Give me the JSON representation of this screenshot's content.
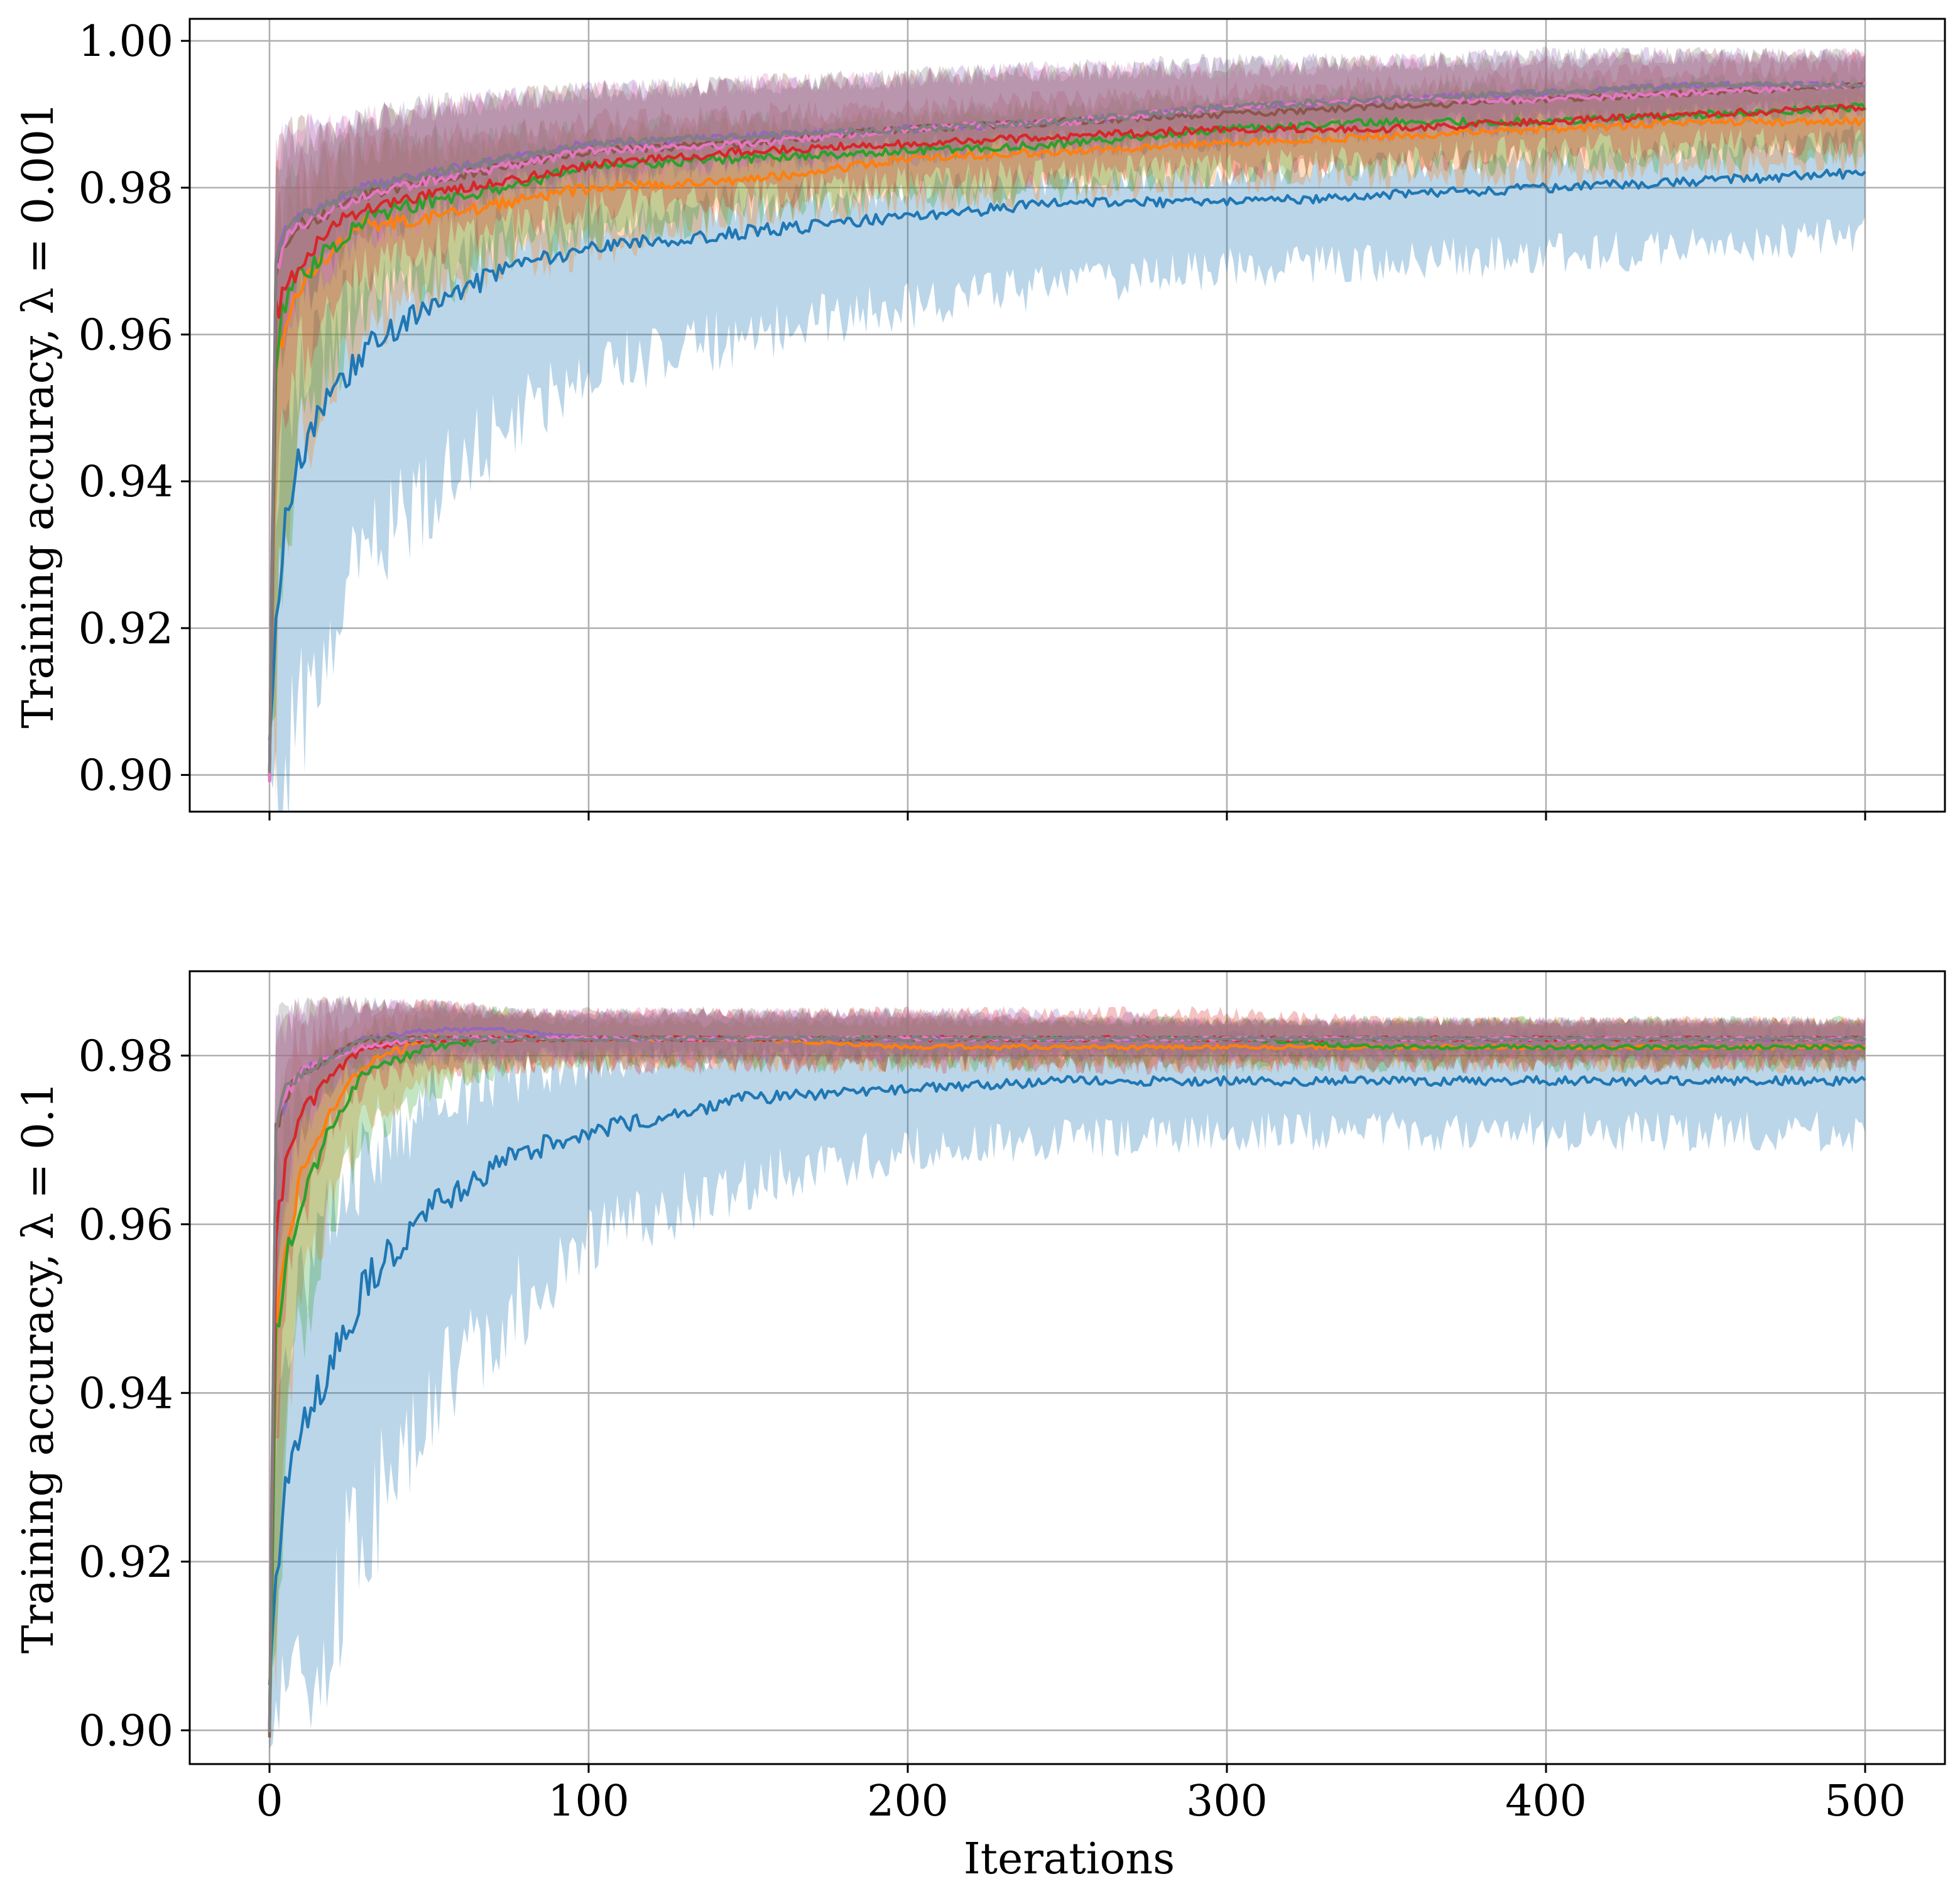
{
  "chart_data": [
    {
      "type": "line",
      "panel": "top",
      "ylabel": "Training accuracy, λ = 0.001",
      "xlabel": "",
      "xlim": [
        -25,
        525
      ],
      "ylim": [
        0.895,
        1.003
      ],
      "x_ticks": [
        0,
        100,
        200,
        300,
        400,
        500
      ],
      "x_tick_labels_shown": false,
      "y_ticks": [
        0.9,
        0.92,
        0.94,
        0.96,
        0.98,
        1.0
      ],
      "y_tick_labels": [
        "0.90",
        "0.92",
        "0.94",
        "0.96",
        "0.98",
        "1.00"
      ],
      "grid": true,
      "legend": "none",
      "x": [
        0,
        2,
        5,
        10,
        20,
        30,
        50,
        75,
        100,
        150,
        200,
        250,
        300,
        350,
        400,
        450,
        500
      ],
      "series": [
        {
          "color": "#1f77b4",
          "band_low": [
            0.9,
            0.9,
            0.902,
            0.908,
            0.92,
            0.93,
            0.938,
            0.948,
            0.955,
            0.96,
            0.964,
            0.967,
            0.969,
            0.97,
            0.971,
            0.972,
            0.974
          ],
          "values": [
            0.905,
            0.92,
            0.935,
            0.944,
            0.952,
            0.958,
            0.964,
            0.969,
            0.972,
            0.974,
            0.976,
            0.978,
            0.978,
            0.979,
            0.98,
            0.981,
            0.982
          ],
          "band_high": [
            0.91,
            0.935,
            0.95,
            0.956,
            0.962,
            0.966,
            0.97,
            0.974,
            0.976,
            0.978,
            0.98,
            0.981,
            0.982,
            0.983,
            0.984,
            0.985,
            0.987
          ]
        },
        {
          "color": "#ff7f0e",
          "band_low": [
            0.9,
            0.91,
            0.935,
            0.945,
            0.955,
            0.962,
            0.966,
            0.97,
            0.972,
            0.976,
            0.978,
            0.98,
            0.981,
            0.982,
            0.982,
            0.983,
            0.983
          ],
          "values": [
            0.9,
            0.955,
            0.963,
            0.966,
            0.971,
            0.975,
            0.976,
            0.978,
            0.98,
            0.981,
            0.984,
            0.985,
            0.986,
            0.987,
            0.988,
            0.989,
            0.989
          ],
          "band_high": [
            0.92,
            0.975,
            0.978,
            0.98,
            0.982,
            0.984,
            0.985,
            0.986,
            0.987,
            0.988,
            0.989,
            0.99,
            0.991,
            0.992,
            0.993,
            0.993,
            0.994
          ]
        },
        {
          "color": "#2ca02c",
          "band_low": [
            0.9,
            0.912,
            0.935,
            0.945,
            0.956,
            0.963,
            0.967,
            0.971,
            0.974,
            0.977,
            0.979,
            0.98,
            0.982,
            0.983,
            0.984,
            0.984,
            0.985
          ],
          "values": [
            0.9,
            0.957,
            0.964,
            0.968,
            0.972,
            0.976,
            0.978,
            0.98,
            0.983,
            0.984,
            0.985,
            0.986,
            0.988,
            0.989,
            0.989,
            0.99,
            0.991
          ],
          "band_high": [
            0.92,
            0.976,
            0.979,
            0.981,
            0.983,
            0.985,
            0.986,
            0.987,
            0.988,
            0.989,
            0.99,
            0.991,
            0.992,
            0.993,
            0.994,
            0.994,
            0.995
          ]
        },
        {
          "color": "#d62728",
          "band_low": [
            0.9,
            0.93,
            0.95,
            0.958,
            0.965,
            0.969,
            0.972,
            0.975,
            0.977,
            0.979,
            0.981,
            0.982,
            0.983,
            0.984,
            0.985,
            0.986,
            0.986
          ],
          "values": [
            0.9,
            0.963,
            0.966,
            0.97,
            0.975,
            0.977,
            0.979,
            0.981,
            0.983,
            0.985,
            0.986,
            0.987,
            0.988,
            0.988,
            0.989,
            0.99,
            0.991
          ],
          "band_high": [
            0.92,
            0.98,
            0.982,
            0.984,
            0.985,
            0.986,
            0.987,
            0.988,
            0.989,
            0.99,
            0.991,
            0.992,
            0.993,
            0.994,
            0.995,
            0.996,
            0.997
          ]
        },
        {
          "color": "#9467bd",
          "band_low": [
            0.9,
            0.955,
            0.962,
            0.966,
            0.971,
            0.974,
            0.977,
            0.98,
            0.982,
            0.984,
            0.985,
            0.986,
            0.987,
            0.988,
            0.989,
            0.99,
            0.991
          ],
          "values": [
            0.9,
            0.97,
            0.974,
            0.976,
            0.978,
            0.98,
            0.982,
            0.984,
            0.986,
            0.987,
            0.988,
            0.989,
            0.991,
            0.992,
            0.993,
            0.994,
            0.994
          ],
          "band_high": [
            0.92,
            0.984,
            0.986,
            0.987,
            0.988,
            0.989,
            0.991,
            0.992,
            0.993,
            0.994,
            0.995,
            0.996,
            0.997,
            0.997,
            0.998,
            0.998,
            0.998
          ]
        },
        {
          "color": "#8c564b",
          "band_low": [
            0.9,
            0.955,
            0.962,
            0.966,
            0.971,
            0.974,
            0.977,
            0.98,
            0.982,
            0.984,
            0.985,
            0.986,
            0.987,
            0.988,
            0.989,
            0.99,
            0.991
          ],
          "values": [
            0.9,
            0.969,
            0.973,
            0.975,
            0.977,
            0.979,
            0.981,
            0.983,
            0.985,
            0.986,
            0.988,
            0.989,
            0.99,
            0.991,
            0.992,
            0.993,
            0.994
          ],
          "band_high": [
            0.92,
            0.984,
            0.986,
            0.987,
            0.988,
            0.989,
            0.991,
            0.992,
            0.993,
            0.994,
            0.995,
            0.996,
            0.996,
            0.997,
            0.997,
            0.998,
            0.998
          ]
        },
        {
          "color": "#e377c2",
          "band_low": [
            0.9,
            0.955,
            0.962,
            0.966,
            0.971,
            0.974,
            0.977,
            0.98,
            0.982,
            0.984,
            0.985,
            0.986,
            0.987,
            0.988,
            0.989,
            0.99,
            0.991
          ],
          "values": [
            0.9,
            0.969,
            0.973,
            0.975,
            0.977,
            0.979,
            0.981,
            0.983,
            0.985,
            0.986,
            0.988,
            0.989,
            0.991,
            0.992,
            0.992,
            0.993,
            0.994
          ],
          "band_high": [
            0.92,
            0.984,
            0.986,
            0.987,
            0.988,
            0.989,
            0.991,
            0.992,
            0.993,
            0.994,
            0.995,
            0.996,
            0.996,
            0.997,
            0.997,
            0.998,
            0.998
          ]
        },
        {
          "color": "#7f7f7f",
          "band_low": [
            0.9,
            0.955,
            0.962,
            0.966,
            0.971,
            0.974,
            0.977,
            0.98,
            0.982,
            0.984,
            0.985,
            0.986,
            0.987,
            0.988,
            0.989,
            0.99,
            0.991
          ],
          "values": [
            0.9,
            0.97,
            0.974,
            0.976,
            0.978,
            0.98,
            0.982,
            0.984,
            0.986,
            0.987,
            0.988,
            0.989,
            0.991,
            0.992,
            0.993,
            0.994,
            0.994
          ],
          "band_high": [
            0.92,
            0.984,
            0.986,
            0.987,
            0.988,
            0.989,
            0.991,
            0.992,
            0.993,
            0.994,
            0.995,
            0.996,
            0.997,
            0.997,
            0.998,
            0.998,
            0.998
          ]
        }
      ]
    },
    {
      "type": "line",
      "panel": "bottom",
      "ylabel": "Training accuracy, λ = 0.1",
      "xlabel": "Iterations",
      "xlim": [
        -25,
        525
      ],
      "ylim": [
        0.896,
        0.99
      ],
      "x_ticks": [
        0,
        100,
        200,
        300,
        400,
        500
      ],
      "x_tick_labels": [
        "0",
        "100",
        "200",
        "300",
        "400",
        "500"
      ],
      "y_ticks": [
        0.9,
        0.92,
        0.94,
        0.96,
        0.98
      ],
      "y_tick_labels": [
        "0.90",
        "0.92",
        "0.94",
        "0.96",
        "0.98"
      ],
      "grid": true,
      "legend": "none",
      "x": [
        0,
        2,
        5,
        10,
        20,
        30,
        50,
        75,
        100,
        150,
        200,
        250,
        300,
        350,
        400,
        450,
        500
      ],
      "series": [
        {
          "color": "#1f77b4",
          "band_low": [
            0.9,
            0.9,
            0.902,
            0.906,
            0.915,
            0.925,
            0.938,
            0.95,
            0.958,
            0.965,
            0.969,
            0.97,
            0.971,
            0.971,
            0.971,
            0.971,
            0.971
          ],
          "values": [
            0.905,
            0.918,
            0.928,
            0.936,
            0.944,
            0.953,
            0.962,
            0.968,
            0.971,
            0.975,
            0.976,
            0.977,
            0.977,
            0.977,
            0.977,
            0.977,
            0.977
          ],
          "band_high": [
            0.91,
            0.932,
            0.944,
            0.952,
            0.962,
            0.968,
            0.975,
            0.978,
            0.98,
            0.981,
            0.981,
            0.981,
            0.982,
            0.982,
            0.982,
            0.982,
            0.982
          ]
        },
        {
          "color": "#ff7f0e",
          "band_low": [
            0.9,
            0.915,
            0.935,
            0.95,
            0.965,
            0.972,
            0.977,
            0.979,
            0.979,
            0.979,
            0.979,
            0.979,
            0.979,
            0.979,
            0.979,
            0.979,
            0.979
          ],
          "values": [
            0.9,
            0.948,
            0.958,
            0.966,
            0.974,
            0.979,
            0.982,
            0.982,
            0.982,
            0.982,
            0.981,
            0.981,
            0.981,
            0.981,
            0.981,
            0.981,
            0.981
          ],
          "band_high": [
            0.915,
            0.97,
            0.975,
            0.979,
            0.982,
            0.984,
            0.985,
            0.985,
            0.984,
            0.984,
            0.984,
            0.984,
            0.984,
            0.984,
            0.984,
            0.984,
            0.984
          ]
        },
        {
          "color": "#2ca02c",
          "band_low": [
            0.9,
            0.912,
            0.932,
            0.948,
            0.962,
            0.97,
            0.976,
            0.979,
            0.979,
            0.979,
            0.979,
            0.979,
            0.979,
            0.979,
            0.979,
            0.979,
            0.979
          ],
          "values": [
            0.9,
            0.946,
            0.955,
            0.963,
            0.972,
            0.978,
            0.981,
            0.982,
            0.982,
            0.982,
            0.982,
            0.982,
            0.982,
            0.981,
            0.981,
            0.981,
            0.981
          ],
          "band_high": [
            0.915,
            0.968,
            0.974,
            0.978,
            0.981,
            0.983,
            0.985,
            0.985,
            0.984,
            0.984,
            0.984,
            0.984,
            0.984,
            0.984,
            0.984,
            0.984,
            0.984
          ]
        },
        {
          "color": "#d62728",
          "band_low": [
            0.9,
            0.93,
            0.95,
            0.962,
            0.972,
            0.977,
            0.979,
            0.979,
            0.979,
            0.979,
            0.979,
            0.979,
            0.979,
            0.979,
            0.979,
            0.979,
            0.979
          ],
          "values": [
            0.9,
            0.958,
            0.967,
            0.973,
            0.978,
            0.981,
            0.982,
            0.982,
            0.982,
            0.982,
            0.982,
            0.982,
            0.982,
            0.982,
            0.982,
            0.982,
            0.982
          ],
          "band_high": [
            0.92,
            0.975,
            0.979,
            0.982,
            0.984,
            0.985,
            0.986,
            0.985,
            0.985,
            0.985,
            0.985,
            0.985,
            0.985,
            0.984,
            0.984,
            0.984,
            0.984
          ]
        },
        {
          "color": "#9467bd",
          "band_low": [
            0.9,
            0.955,
            0.965,
            0.972,
            0.977,
            0.979,
            0.98,
            0.98,
            0.98,
            0.98,
            0.98,
            0.98,
            0.98,
            0.98,
            0.98,
            0.98,
            0.98
          ],
          "values": [
            0.9,
            0.972,
            0.975,
            0.978,
            0.98,
            0.982,
            0.983,
            0.983,
            0.982,
            0.982,
            0.982,
            0.982,
            0.982,
            0.982,
            0.982,
            0.982,
            0.982
          ],
          "band_high": [
            0.92,
            0.982,
            0.984,
            0.985,
            0.986,
            0.986,
            0.986,
            0.985,
            0.985,
            0.985,
            0.985,
            0.985,
            0.984,
            0.984,
            0.984,
            0.984,
            0.984
          ]
        },
        {
          "color": "#8c564b",
          "band_low": [
            0.9,
            0.955,
            0.965,
            0.972,
            0.977,
            0.979,
            0.98,
            0.98,
            0.98,
            0.98,
            0.98,
            0.98,
            0.98,
            0.98,
            0.98,
            0.98,
            0.98
          ],
          "values": [
            0.9,
            0.971,
            0.975,
            0.978,
            0.98,
            0.982,
            0.982,
            0.982,
            0.982,
            0.982,
            0.982,
            0.982,
            0.982,
            0.982,
            0.982,
            0.982,
            0.982
          ],
          "band_high": [
            0.92,
            0.982,
            0.984,
            0.985,
            0.986,
            0.986,
            0.986,
            0.985,
            0.985,
            0.985,
            0.985,
            0.984,
            0.984,
            0.984,
            0.984,
            0.984,
            0.984
          ]
        },
        {
          "color": "#e377c2",
          "band_low": [
            0.9,
            0.955,
            0.965,
            0.972,
            0.977,
            0.979,
            0.98,
            0.98,
            0.98,
            0.98,
            0.98,
            0.98,
            0.98,
            0.98,
            0.98,
            0.98,
            0.98
          ],
          "values": [
            0.9,
            0.971,
            0.975,
            0.978,
            0.98,
            0.981,
            0.982,
            0.982,
            0.982,
            0.982,
            0.982,
            0.982,
            0.982,
            0.982,
            0.982,
            0.982,
            0.982
          ],
          "band_high": [
            0.92,
            0.982,
            0.984,
            0.985,
            0.986,
            0.986,
            0.986,
            0.985,
            0.985,
            0.985,
            0.985,
            0.984,
            0.984,
            0.984,
            0.984,
            0.984,
            0.984
          ]
        },
        {
          "color": "#7f7f7f",
          "band_low": [
            0.9,
            0.955,
            0.965,
            0.972,
            0.977,
            0.979,
            0.98,
            0.98,
            0.98,
            0.98,
            0.98,
            0.98,
            0.98,
            0.98,
            0.98,
            0.98,
            0.98
          ],
          "values": [
            0.9,
            0.972,
            0.976,
            0.978,
            0.98,
            0.982,
            0.982,
            0.982,
            0.982,
            0.982,
            0.982,
            0.982,
            0.982,
            0.982,
            0.982,
            0.982,
            0.982
          ],
          "band_high": [
            0.92,
            0.982,
            0.984,
            0.985,
            0.986,
            0.986,
            0.986,
            0.985,
            0.985,
            0.985,
            0.985,
            0.984,
            0.984,
            0.984,
            0.984,
            0.984,
            0.984
          ]
        }
      ]
    }
  ]
}
